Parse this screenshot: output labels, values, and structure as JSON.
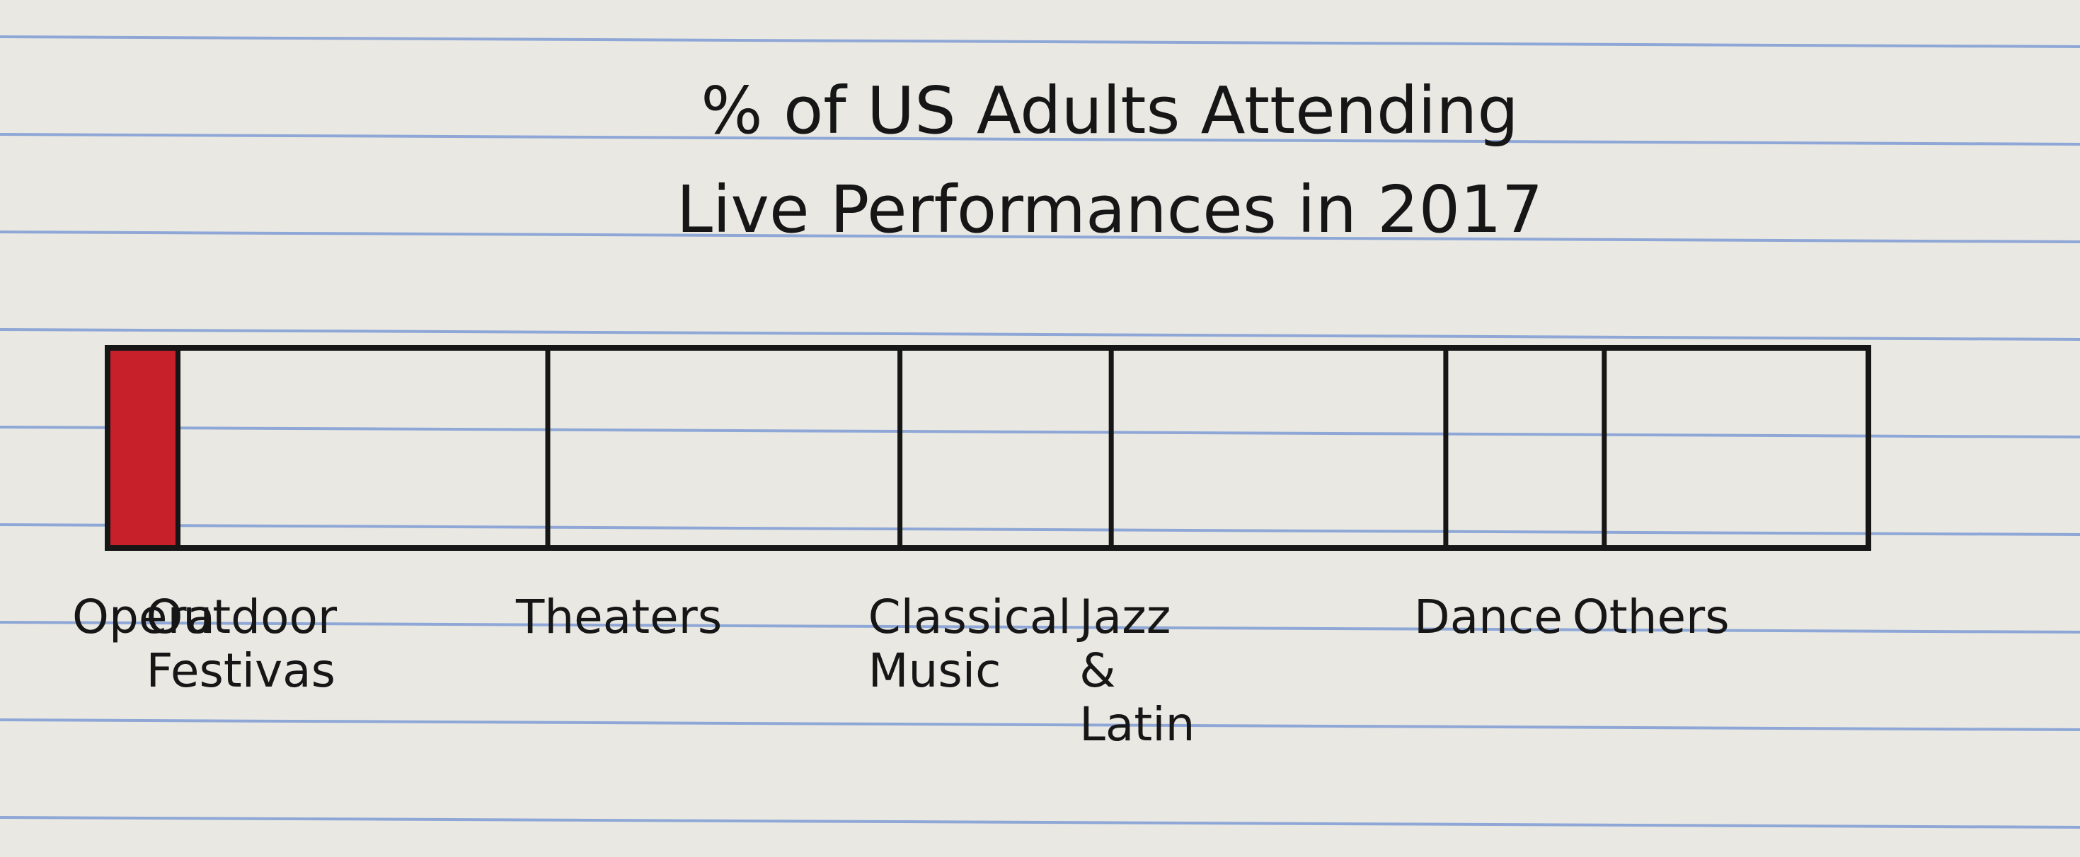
{
  "chart_data": {
    "type": "bar",
    "title": "% of US Adults Attending Live Performances in 2017",
    "title_lines": [
      "% of US Adults Attending",
      "Live Performances in 2017"
    ],
    "orientation": "horizontal-stacked",
    "scale": "percent-of-total",
    "categories": [
      "Opera",
      "Outdoor Festivals",
      "Theaters",
      "Classical Music",
      "Jazz & Latin",
      "Dance",
      "Others"
    ],
    "category_label_lines": [
      [
        "Opera"
      ],
      [
        "Outdoor",
        "Festivas"
      ],
      [
        "Theaters"
      ],
      [
        "Classical",
        "Music"
      ],
      [
        "Jazz",
        "&",
        "Latin"
      ],
      [
        "Dance"
      ],
      [
        "Others"
      ]
    ],
    "values": [
      4,
      21,
      20,
      12,
      19,
      9,
      15
    ],
    "highlighted_category": "Opera",
    "colors": {
      "highlight": "#c8202a",
      "ink": "#161616",
      "paper": "#e9e8e3",
      "rule": "#8ea7d6"
    },
    "grid": false,
    "legend": "none"
  }
}
